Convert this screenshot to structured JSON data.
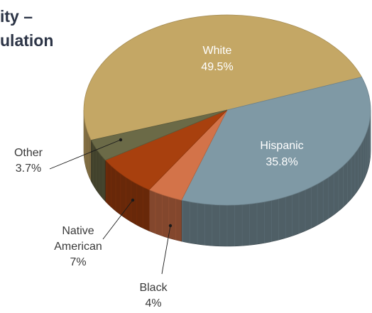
{
  "title_lines": [
    "ity –",
    "ulation"
  ],
  "chart_data": {
    "type": "pie",
    "style": "3d",
    "title": "",
    "slices": [
      {
        "label": "White",
        "value": 49.5,
        "value_label": "49.5%",
        "color": "#c4a765",
        "label_position": "inside",
        "label_color": "#ffffff"
      },
      {
        "label": "Hispanic",
        "value": 35.8,
        "value_label": "35.8%",
        "color": "#7f99a5",
        "label_position": "inside",
        "label_color": "#ffffff"
      },
      {
        "label": "Black",
        "value": 4,
        "value_label": "4%",
        "color": "#d37349",
        "label_position": "outside",
        "label_color": "#3a3a3a"
      },
      {
        "label": "Native American",
        "value": 7,
        "value_label": "7%",
        "color": "#a8400e",
        "label_position": "outside",
        "label_color": "#3a3a3a"
      },
      {
        "label": "Other",
        "value": 3.7,
        "value_label": "3.7%",
        "color": "#6b6a47",
        "label_position": "outside",
        "label_color": "#3a3a3a"
      }
    ]
  }
}
